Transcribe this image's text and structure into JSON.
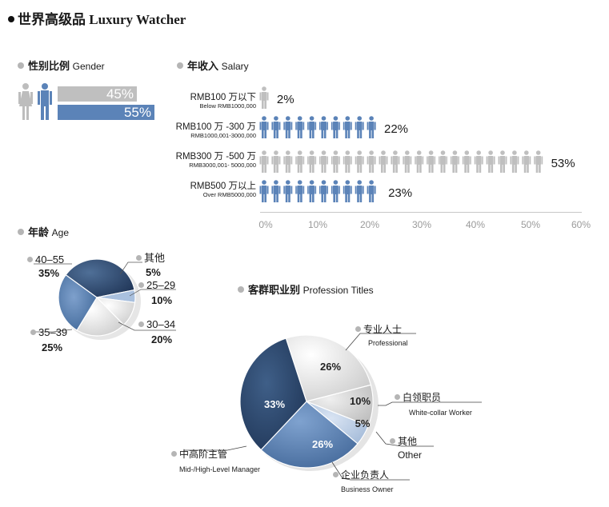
{
  "title": "世界高级品 Luxury Watcher",
  "colors": {
    "blue": "#5b83b8",
    "gray": "#bfbfbf",
    "dark_blue": "#2c4a70"
  },
  "gender": {
    "title_cn": "性别比例",
    "title_en": "Gender",
    "female_label": "45%",
    "male_label": "55%",
    "female_value": 45,
    "male_value": 55
  },
  "salary": {
    "title_cn": "年收入",
    "title_en": "Salary",
    "rows": [
      {
        "cn": "RMB100 万以下",
        "en": "Below RMB1000,000",
        "pct": "2%",
        "value": 2,
        "color": "gray"
      },
      {
        "cn": "RMB100 万 -300 万",
        "en": "RMB1000,001-3000,000",
        "pct": "22%",
        "value": 22,
        "color": "blue"
      },
      {
        "cn": "RMB300 万 -500 万",
        "en": "RMB3000,001- 5000,000",
        "pct": "53%",
        "value": 53,
        "color": "gray"
      },
      {
        "cn": "RMB500 万以上",
        "en": "Over RMB5000,000",
        "pct": "23%",
        "value": 23,
        "color": "blue"
      }
    ],
    "ticks": [
      "0%",
      "10%",
      "20%",
      "30%",
      "40%",
      "50%",
      "60%"
    ]
  },
  "age": {
    "title_cn": "年龄",
    "title_en": "Age",
    "labels": [
      {
        "range": "40–55",
        "pct": "35%"
      },
      {
        "range": "其他",
        "pct": "5%"
      },
      {
        "range": "25–29",
        "pct": "10%"
      },
      {
        "range": "30–34",
        "pct": "20%"
      },
      {
        "range": "35–39",
        "pct": "25%"
      }
    ]
  },
  "profession": {
    "title_cn": "客群职业别",
    "title_en": "Profession Titles",
    "slices": [
      {
        "cn": "专业人士",
        "en": "Professional",
        "pct": "26%"
      },
      {
        "cn": "白领职员",
        "en": "White-collar Worker",
        "pct": "10%"
      },
      {
        "cn": "其他",
        "en": "Other",
        "pct": "5%"
      },
      {
        "cn": "企业负责人",
        "en": "Business Owner",
        "pct": "26%"
      },
      {
        "cn": "中高阶主管",
        "en": "Mid-/High-Level Manager",
        "pct": "33%"
      }
    ]
  },
  "chart_data": [
    {
      "type": "bar",
      "title": "性别比例 Gender",
      "categories": [
        "Female",
        "Male"
      ],
      "values": [
        45,
        55
      ]
    },
    {
      "type": "bar",
      "title": "年收入 Salary",
      "categories": [
        "RMB100 万以下",
        "RMB100 万 -300 万",
        "RMB300 万 -500 万",
        "RMB500 万以上"
      ],
      "values": [
        2,
        22,
        53,
        23
      ],
      "xlim": [
        0,
        60
      ]
    },
    {
      "type": "pie",
      "title": "年龄 Age",
      "categories": [
        "40–55",
        "其他",
        "25–29",
        "30–34",
        "35–39"
      ],
      "values": [
        35,
        5,
        10,
        20,
        25
      ]
    },
    {
      "type": "pie",
      "title": "客群职业别 Profession Titles",
      "categories": [
        "专业人士 Professional",
        "白领职员 White-collar Worker",
        "其他 Other",
        "企业负责人 Business Owner",
        "中高阶主管 Mid-/High-Level Manager"
      ],
      "values": [
        26,
        10,
        5,
        26,
        33
      ]
    }
  ]
}
